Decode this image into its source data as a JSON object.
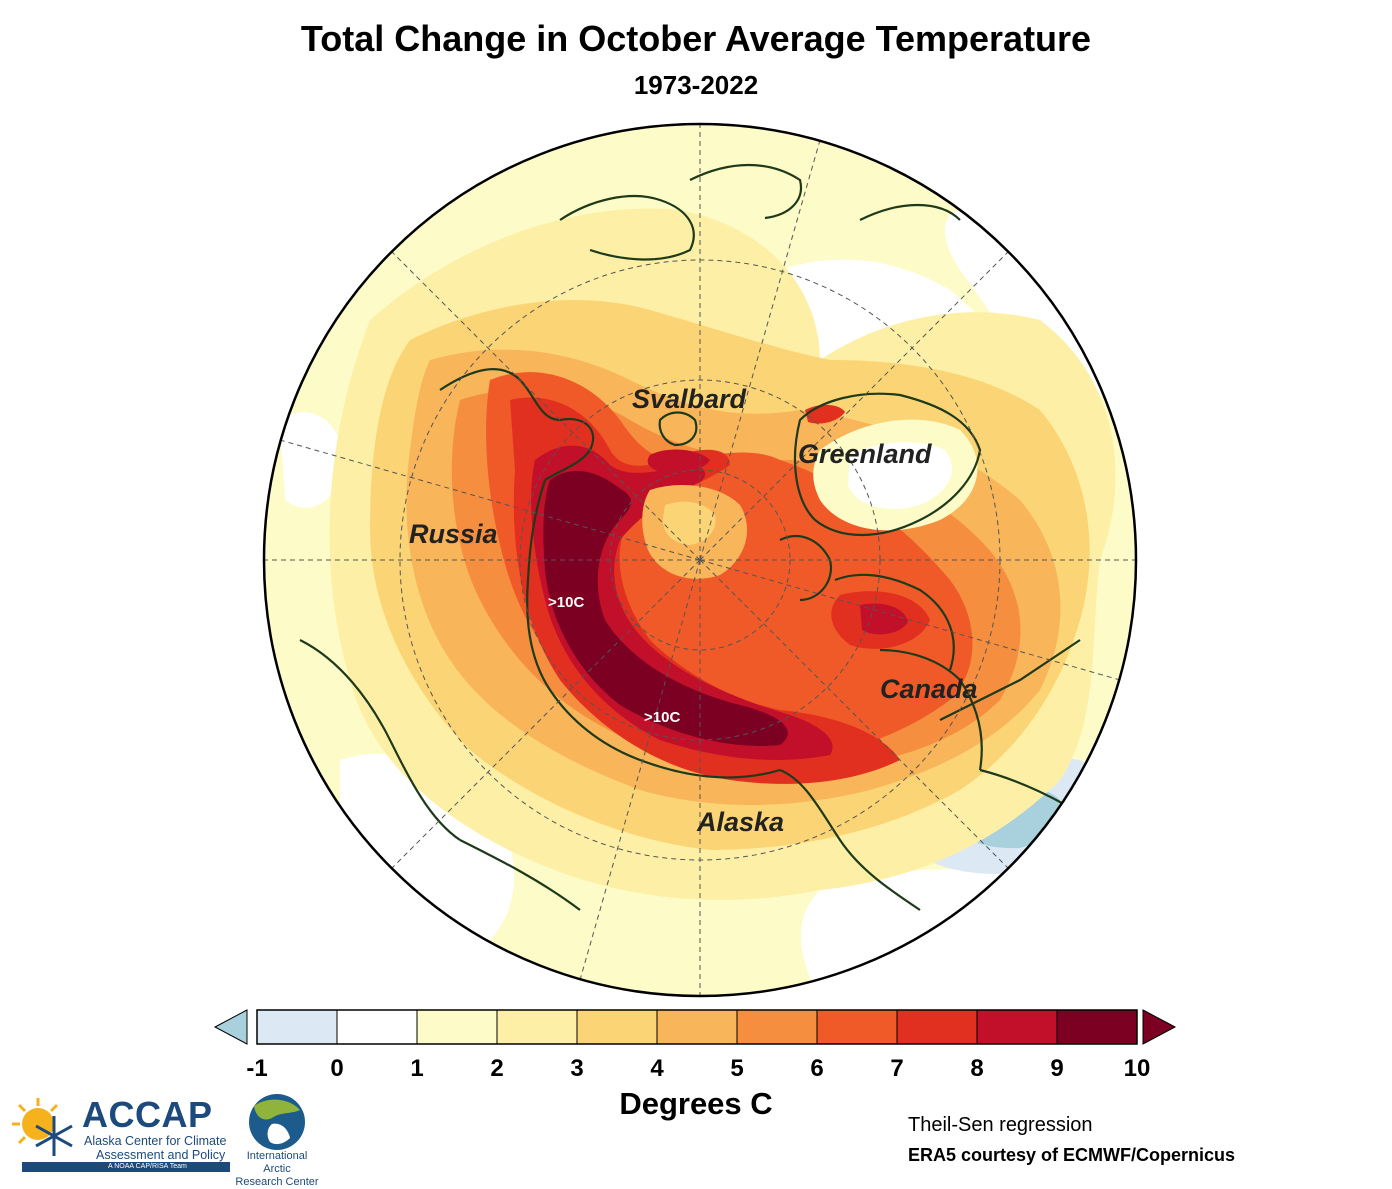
{
  "title": "Total Change in October Average Temperature",
  "subtitle": "1973-2022",
  "map": {
    "regions": [
      {
        "name": "Svalbard"
      },
      {
        "name": "Greenland"
      },
      {
        "name": "Russia"
      },
      {
        "name": "Canada"
      },
      {
        "name": "Alaska"
      }
    ],
    "annotations": [
      ">10C",
      ">10C"
    ]
  },
  "chart_data": {
    "type": "heatmap",
    "projection": "north-polar-stereographic",
    "title": "Total Change in October Average Temperature",
    "subtitle": "1973-2022",
    "colorbar": {
      "label": "Degrees C",
      "ticks": [
        "-1",
        "0",
        "1",
        "2",
        "3",
        "4",
        "5",
        "6",
        "7",
        "8",
        "9",
        "10"
      ],
      "range": [
        -1,
        10
      ],
      "extend": "both",
      "colors": [
        "#dce9f5",
        "#ffffff",
        "#fdfbc8",
        "#fdf0a6",
        "#fbd575",
        "#f8b55a",
        "#f58e3e",
        "#f05a28",
        "#e23020",
        "#c2102a",
        "#7b0022"
      ],
      "under_color": "#a9d0dd",
      "over_color": "#7b0022"
    },
    "max_label": ">10C"
  },
  "footer": {
    "method": "Theil-Sen regression",
    "source": "ERA5 courtesy of ECMWF/Copernicus"
  },
  "logos": {
    "accap": {
      "name": "ACCAP",
      "line1": "Alaska Center for Climate",
      "line2": "Assessment and Policy",
      "tagline": "A NOAA CAP/RISA Team"
    },
    "iarc": {
      "line1": "International Arctic",
      "line2": "Research Center"
    }
  }
}
